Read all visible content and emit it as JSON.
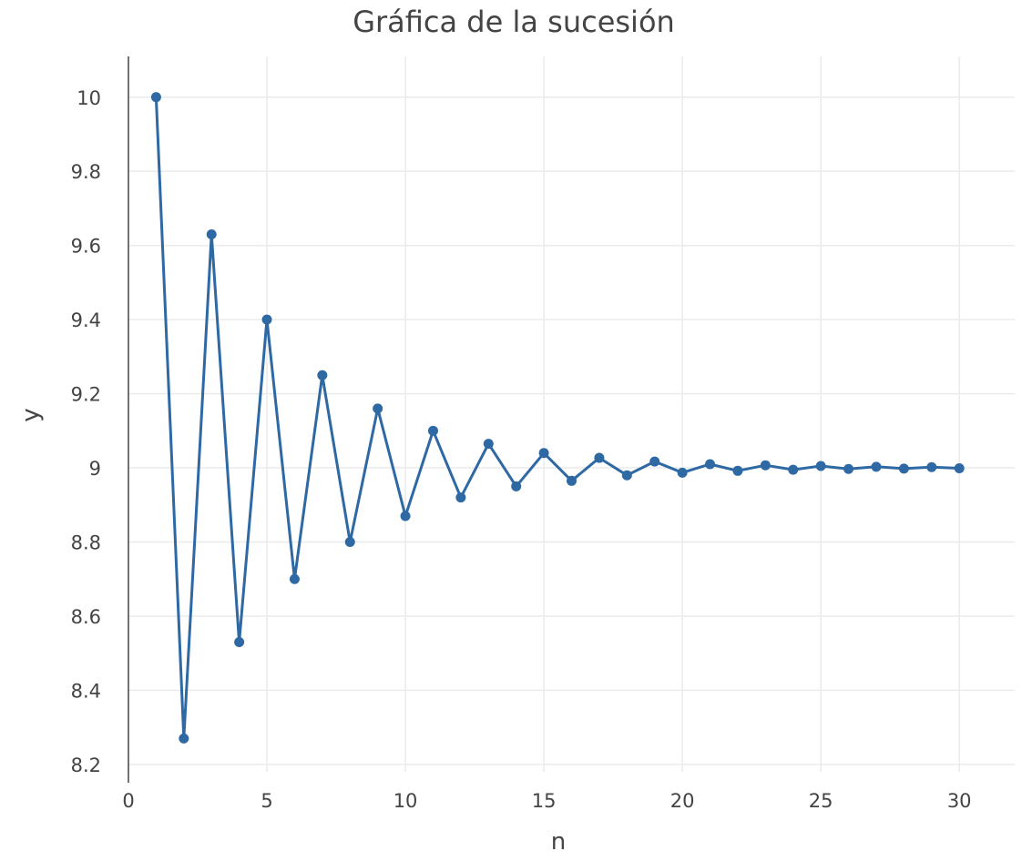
{
  "chart_data": {
    "type": "line",
    "title": "Gráfica de la sucesión",
    "xlabel": "n",
    "ylabel": "y",
    "xlim": [
      0,
      32
    ],
    "ylim": [
      8.18,
      10.11
    ],
    "xticks": [
      "0",
      "5",
      "10",
      "15",
      "20",
      "25",
      "30"
    ],
    "yticks": [
      "8.2",
      "8.4",
      "8.6",
      "8.8",
      "9",
      "9.2",
      "9.4",
      "9.6",
      "9.8",
      "10"
    ],
    "grid": true,
    "markers": true,
    "color": "#2e69a4",
    "gridColor": "#ebebeb",
    "series": [
      {
        "x": [
          1,
          2,
          3,
          4,
          5,
          6,
          7,
          8,
          9,
          10,
          11,
          12,
          13,
          14,
          15,
          16,
          17,
          18,
          19,
          20,
          21,
          22,
          23,
          24,
          25,
          26,
          27,
          28,
          29,
          30
        ],
        "y": [
          10.0,
          8.27,
          9.63,
          8.53,
          9.4,
          8.7,
          9.25,
          8.8,
          9.16,
          8.87,
          9.1,
          8.92,
          9.065,
          8.95,
          9.04,
          8.965,
          9.027,
          8.98,
          9.017,
          8.987,
          9.01,
          8.992,
          9.007,
          8.995,
          9.005,
          8.997,
          9.003,
          8.998,
          9.002,
          8.999
        ]
      }
    ]
  }
}
